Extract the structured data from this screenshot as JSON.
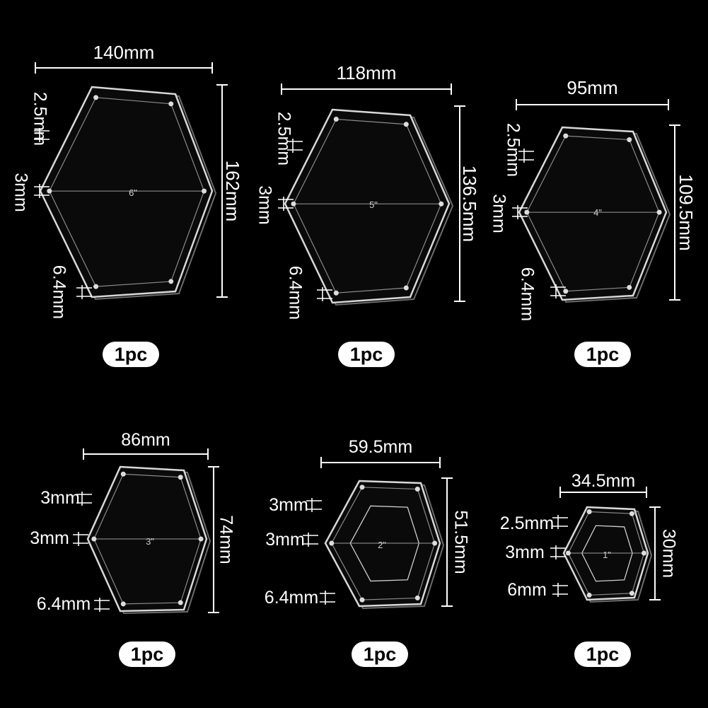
{
  "products": [
    {
      "size": "6\"",
      "width": "140mm",
      "height": "162mm",
      "dims": [
        "2.5mm",
        "3mm",
        "6.4mm"
      ],
      "qty": "1pc"
    },
    {
      "size": "5\"",
      "width": "118mm",
      "height": "136.5mm",
      "dims": [
        "2.5mm",
        "3mm",
        "6.4mm"
      ],
      "qty": "1pc"
    },
    {
      "size": "4\"",
      "width": "95mm",
      "height": "109.5mm",
      "dims": [
        "2.5mm",
        "3mm",
        "6.4mm"
      ],
      "qty": "1pc"
    },
    {
      "size": "3\"",
      "width": "86mm",
      "height": "74mm",
      "dims": [
        "3mm",
        "3mm",
        "6.4mm"
      ],
      "qty": "1pc"
    },
    {
      "size": "2\"",
      "width": "59.5mm",
      "height": "51.5mm",
      "dims": [
        "3mm",
        "3mm",
        "6.4mm"
      ],
      "qty": "1pc"
    },
    {
      "size": "1\"",
      "width": "34.5mm",
      "height": "30mm",
      "dims": [
        "2.5mm",
        "3mm",
        "6mm"
      ],
      "qty": "1pc"
    }
  ],
  "colors": {
    "background": "#000000",
    "line": "#ffffff",
    "acrylic_edge": "#d8d8d8",
    "pill": "#ffffff"
  }
}
